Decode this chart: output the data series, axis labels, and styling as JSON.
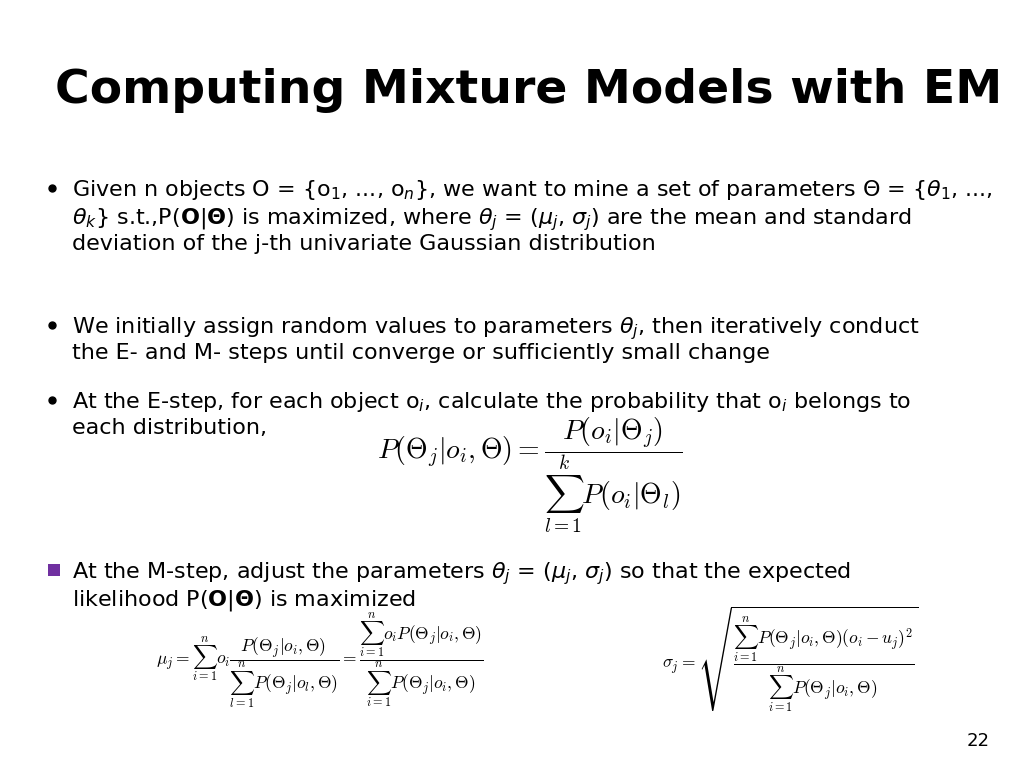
{
  "title": "Computing Mixture Models with EM",
  "background_color": "#ffffff",
  "title_color": "#000000",
  "title_fontsize": 34,
  "bullet_color": "#000000",
  "bullet_fontsize": 16,
  "page_number": "22",
  "purple_color": "#7030A0",
  "formula1": "P(\\Theta_j|o_i, \\mathbf{\\Theta}) = \\dfrac{P(o_i|\\Theta_j)}{\\sum_{l=1}^{k} P(o_i|\\Theta_l)}",
  "formula2": "\\mu_j = \\sum_{i=1}^{n} o_i \\dfrac{P(\\Theta_j|o_i, \\mathbf{\\Theta})}{\\sum_{l=1}^{n} P(\\Theta_j|o_l, \\mathbf{\\Theta})} = \\dfrac{\\sum_{i=1}^{n} o_i P(\\Theta_j|o_i, \\mathbf{\\Theta})}{\\sum_{i=1}^{n} P(\\Theta_j|o_i, \\mathbf{\\Theta})}",
  "formula3": "\\sigma_j = \\sqrt{\\dfrac{\\sum_{i=1}^{n} P(\\Theta_j|o_i, \\mathbf{\\Theta})(o_i - u_j)^2}{\\sum_{i=1}^{n} P(\\Theta_j|o_i, \\mathbf{\\Theta})}}"
}
